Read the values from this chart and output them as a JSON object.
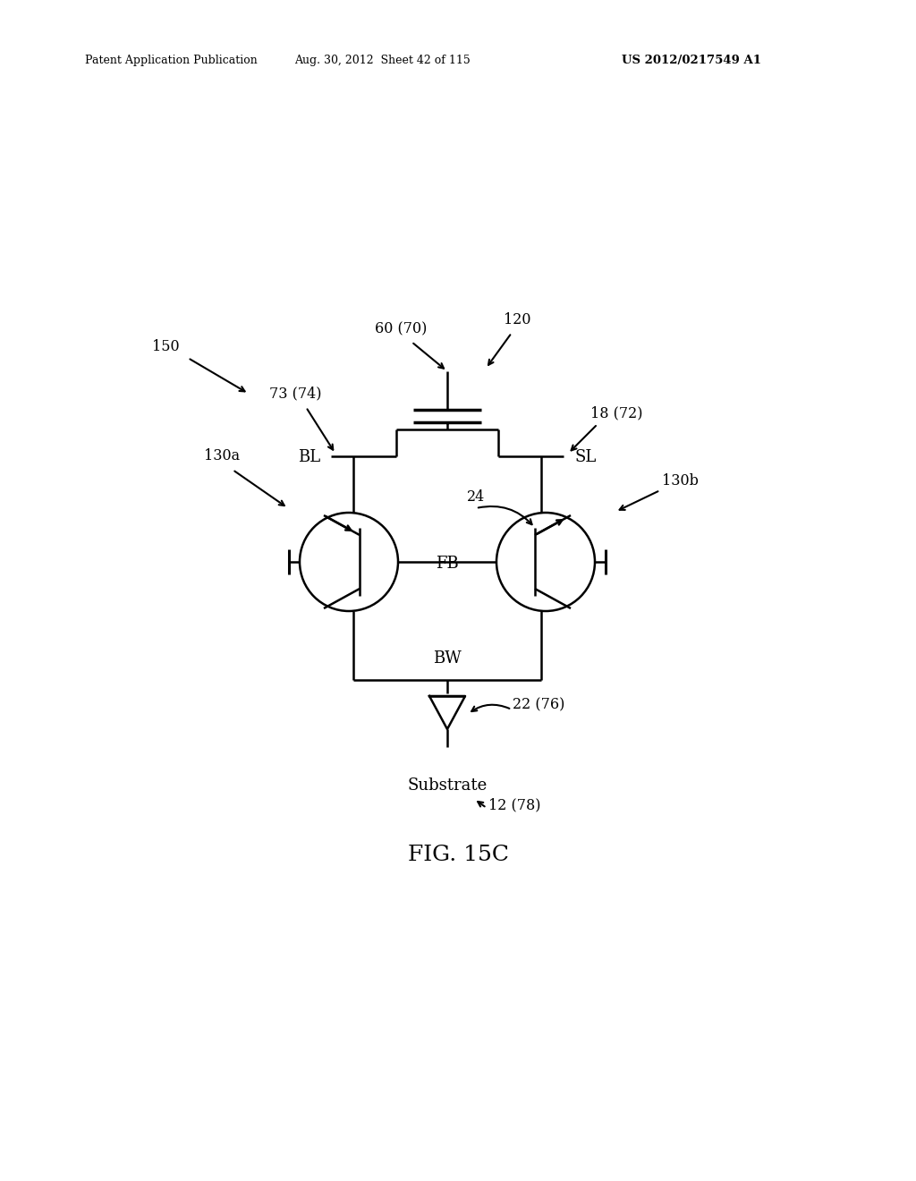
{
  "bg_color": "#ffffff",
  "line_color": "#000000",
  "header_left": "Patent Application Publication",
  "header_mid": "Aug. 30, 2012  Sheet 42 of 115",
  "header_right": "US 2012/0217549 A1",
  "fig_label": "FIG. 15C"
}
